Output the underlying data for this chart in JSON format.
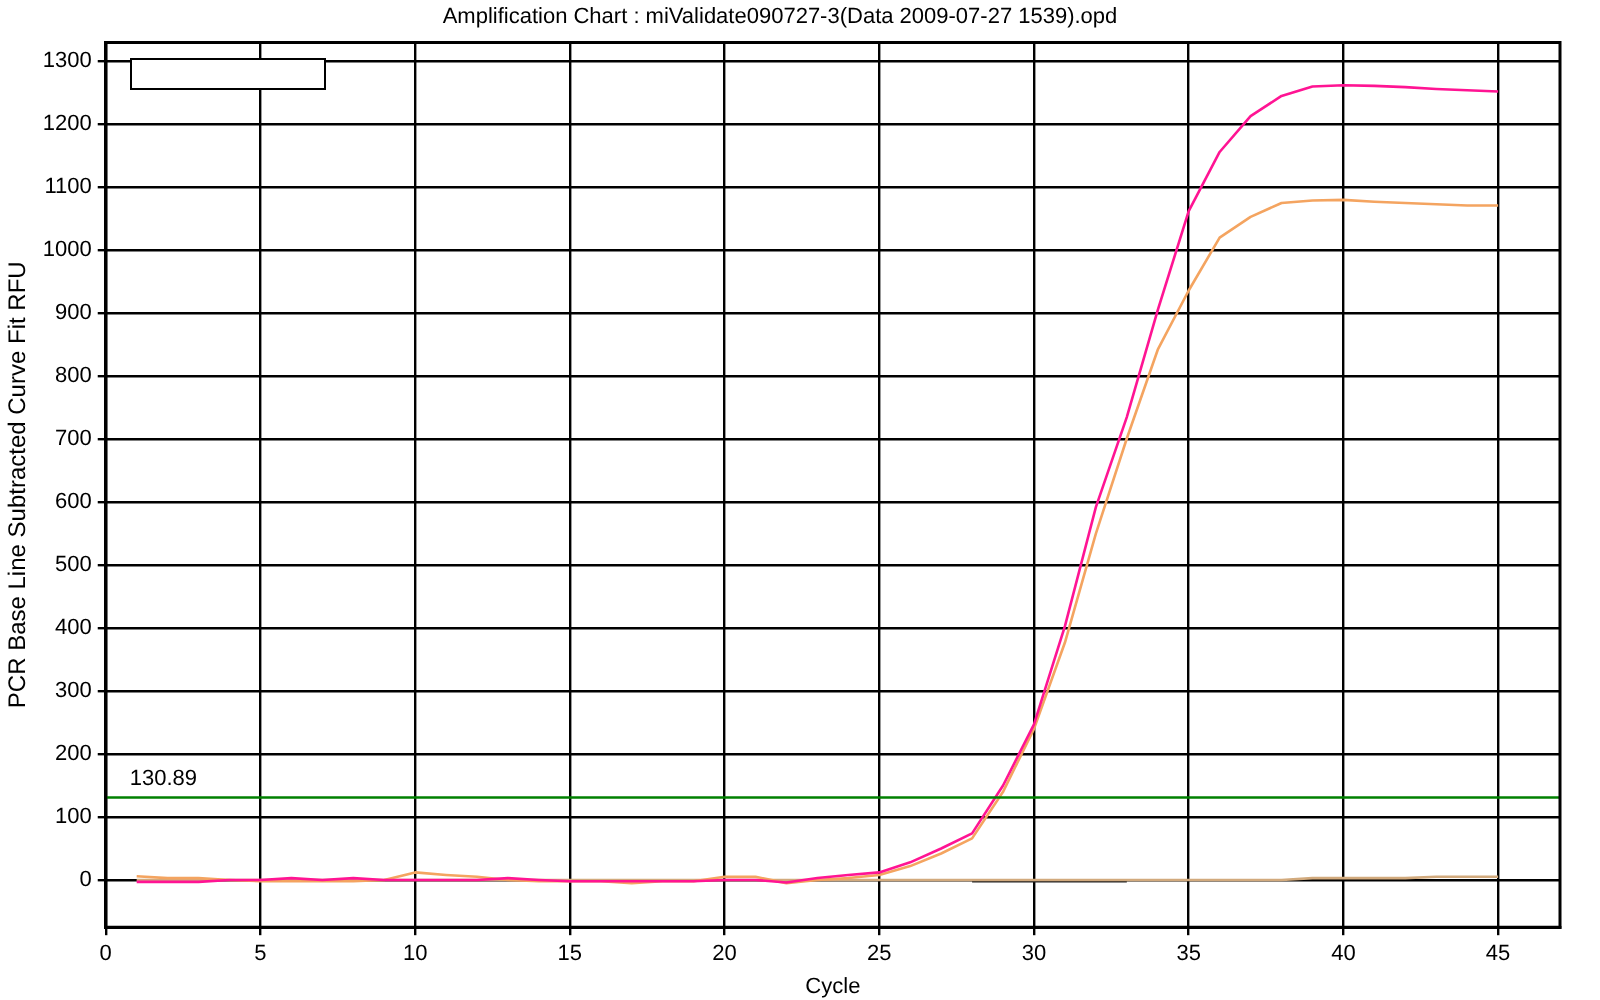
{
  "chart_data": {
    "type": "line",
    "title": "Amplification Chart : miValidate090727-3(Data 2009-07-27 1539).opd",
    "xlabel": "Cycle",
    "ylabel": "PCR Base Line Subtracted Curve Fit RFU",
    "x": [
      1,
      2,
      3,
      4,
      5,
      6,
      7,
      8,
      9,
      10,
      11,
      12,
      13,
      14,
      15,
      16,
      17,
      18,
      19,
      20,
      21,
      22,
      23,
      24,
      25,
      26,
      27,
      28,
      29,
      30,
      31,
      32,
      33,
      34,
      35,
      36,
      37,
      38,
      39,
      40,
      41,
      42,
      43,
      44,
      45
    ],
    "series": [
      {
        "color": "#ff1493",
        "values": [
          -3,
          -3,
          -3,
          0,
          0,
          3,
          0,
          3,
          0,
          0,
          0,
          0,
          3,
          0,
          -2,
          -2,
          -2,
          -2,
          -2,
          0,
          0,
          -4,
          3,
          8,
          12,
          28,
          50,
          74,
          150,
          247,
          403,
          592,
          735,
          905,
          1062,
          1156,
          1213,
          1245,
          1260,
          1262,
          1261,
          1259,
          1256,
          1254,
          1252
        ]
      },
      {
        "color": "#f4a460",
        "values": [
          6,
          3,
          3,
          0,
          -2,
          -2,
          -2,
          -2,
          0,
          12,
          8,
          5,
          0,
          -2,
          -2,
          -2,
          -5,
          -2,
          -2,
          5,
          5,
          -5,
          0,
          3,
          8,
          22,
          42,
          66,
          140,
          240,
          377,
          550,
          701,
          842,
          936,
          1020,
          1053,
          1075,
          1079,
          1080,
          1077,
          1075,
          1073,
          1071,
          1071
        ]
      },
      {
        "color": "#d2aa7d",
        "values": [
          0,
          0,
          0,
          0,
          0,
          0,
          0,
          0,
          0,
          0,
          0,
          0,
          0,
          0,
          0,
          0,
          0,
          0,
          0,
          0,
          0,
          0,
          0,
          0,
          0,
          0,
          0,
          0,
          0,
          0,
          0,
          0,
          0,
          0,
          0,
          0,
          0,
          0,
          3,
          3,
          3,
          3,
          5,
          5,
          5
        ]
      },
      {
        "color": "#202020",
        "values": [
          null,
          null,
          null,
          null,
          null,
          null,
          null,
          null,
          null,
          null,
          null,
          null,
          null,
          null,
          null,
          null,
          null,
          null,
          null,
          null,
          null,
          null,
          null,
          null,
          null,
          null,
          null,
          -2,
          -2,
          -2,
          -2,
          -2,
          -2,
          null,
          null,
          null,
          null,
          null,
          null,
          null,
          null,
          null,
          null,
          null,
          null
        ]
      }
    ],
    "xlim": [
      0,
      47
    ],
    "xticks": [
      0,
      5,
      10,
      15,
      20,
      25,
      30,
      35,
      40,
      45
    ],
    "ylim": [
      -75,
      1330
    ],
    "yticks": [
      0,
      100,
      200,
      300,
      400,
      500,
      600,
      700,
      800,
      900,
      1000,
      1100,
      1200,
      1300
    ],
    "ref_lines": [
      {
        "axis": "y",
        "value": 130.89,
        "label": "130.89",
        "color": "#008000"
      }
    ],
    "grid": true,
    "marker": "none",
    "line_style": "solid"
  }
}
